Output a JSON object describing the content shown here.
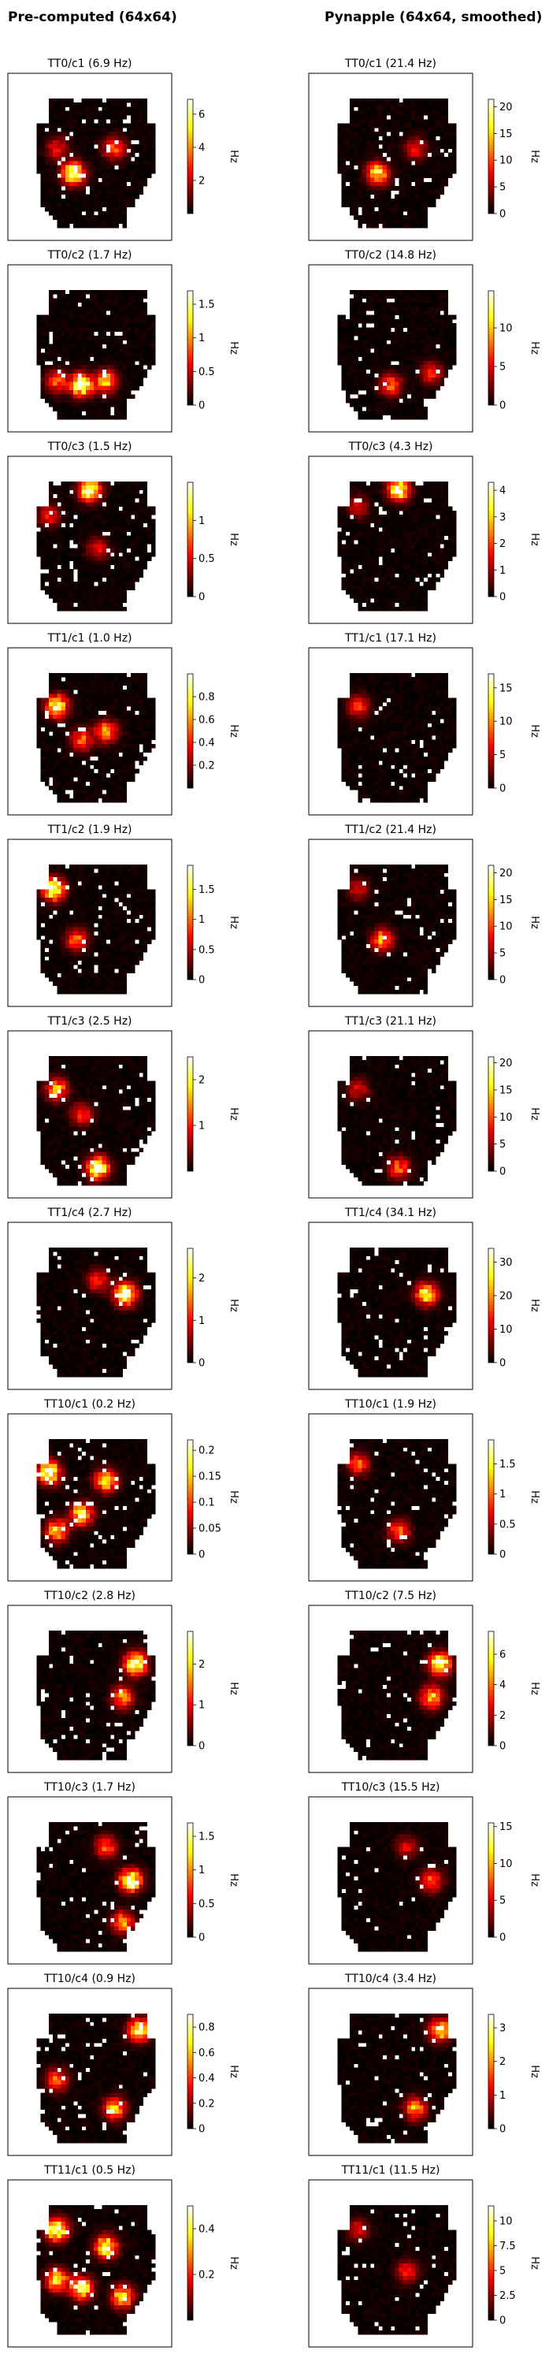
{
  "figure": {
    "column_titles": [
      "Pre-computed (64x64)",
      "Pynapple (64x64, smoothed)"
    ],
    "colormap": "hot",
    "colorbar_label": "Hz"
  },
  "chart_data": [
    {
      "type": "heatmap",
      "title": "TT0/c1 (6.9 Hz)",
      "unit": "Hz",
      "vmax": 6.9,
      "colorbar_ticks": [
        2,
        4,
        6
      ],
      "hotspots": [
        [
          0.4,
          0.6,
          1.0
        ],
        [
          0.65,
          0.45,
          0.5
        ],
        [
          0.3,
          0.45,
          0.35
        ]
      ],
      "seed": 11
    },
    {
      "type": "heatmap",
      "title": "TT0/c1 (21.4 Hz)",
      "unit": "Hz",
      "vmax": 21.4,
      "colorbar_ticks": [
        0,
        5,
        10,
        15,
        20
      ],
      "hotspots": [
        [
          0.42,
          0.6,
          0.8
        ],
        [
          0.65,
          0.45,
          0.35
        ]
      ],
      "seed": 12
    },
    {
      "type": "heatmap",
      "title": "TT0/c2 (1.7 Hz)",
      "unit": "Hz",
      "vmax": 1.7,
      "colorbar_ticks": [
        0.0,
        0.5,
        1.0,
        1.5
      ],
      "hotspots": [
        [
          0.45,
          0.72,
          1.0
        ],
        [
          0.6,
          0.7,
          0.7
        ],
        [
          0.3,
          0.7,
          0.5
        ]
      ],
      "seed": 13
    },
    {
      "type": "heatmap",
      "title": "TT0/c2 (14.8 Hz)",
      "unit": "Hz",
      "vmax": 14.8,
      "colorbar_ticks": [
        0,
        5,
        10
      ],
      "hotspots": [
        [
          0.5,
          0.72,
          0.5
        ],
        [
          0.75,
          0.65,
          0.4
        ]
      ],
      "seed": 14
    },
    {
      "type": "heatmap",
      "title": "TT0/c3 (1.5 Hz)",
      "unit": "Hz",
      "vmax": 1.5,
      "colorbar_ticks": [
        0.0,
        0.5,
        1.0
      ],
      "hotspots": [
        [
          0.5,
          0.2,
          1.0
        ],
        [
          0.25,
          0.35,
          0.4
        ],
        [
          0.55,
          0.55,
          0.3
        ]
      ],
      "seed": 15
    },
    {
      "type": "heatmap",
      "title": "TT0/c3 (4.3 Hz)",
      "unit": "Hz",
      "vmax": 4.3,
      "colorbar_ticks": [
        0,
        1,
        2,
        3,
        4
      ],
      "hotspots": [
        [
          0.55,
          0.2,
          0.9
        ],
        [
          0.3,
          0.3,
          0.3
        ]
      ],
      "seed": 16
    },
    {
      "type": "heatmap",
      "title": "TT1/c1 (1.0 Hz)",
      "unit": "Hz",
      "vmax": 1.0,
      "colorbar_ticks": [
        0.2,
        0.4,
        0.6,
        0.8
      ],
      "hotspots": [
        [
          0.3,
          0.35,
          0.9
        ],
        [
          0.6,
          0.5,
          0.6
        ],
        [
          0.45,
          0.55,
          0.5
        ]
      ],
      "seed": 17
    },
    {
      "type": "heatmap",
      "title": "TT1/c1 (17.1 Hz)",
      "unit": "Hz",
      "vmax": 17.1,
      "colorbar_ticks": [
        0,
        5,
        10,
        15
      ],
      "hotspots": [
        [
          0.3,
          0.35,
          0.4
        ]
      ],
      "seed": 18
    },
    {
      "type": "heatmap",
      "title": "TT1/c2 (1.9 Hz)",
      "unit": "Hz",
      "vmax": 1.9,
      "colorbar_ticks": [
        0.0,
        0.5,
        1.0,
        1.5
      ],
      "hotspots": [
        [
          0.28,
          0.3,
          1.0
        ],
        [
          0.42,
          0.6,
          0.5
        ]
      ],
      "seed": 19
    },
    {
      "type": "heatmap",
      "title": "TT1/c2 (21.4 Hz)",
      "unit": "Hz",
      "vmax": 21.4,
      "colorbar_ticks": [
        0,
        5,
        10,
        15,
        20
      ],
      "hotspots": [
        [
          0.45,
          0.6,
          0.6
        ],
        [
          0.3,
          0.3,
          0.3
        ]
      ],
      "seed": 20
    },
    {
      "type": "heatmap",
      "title": "TT1/c3 (2.5 Hz)",
      "unit": "Hz",
      "vmax": 2.5,
      "colorbar_ticks": [
        1,
        2
      ],
      "hotspots": [
        [
          0.3,
          0.35,
          0.6
        ],
        [
          0.55,
          0.82,
          1.0
        ],
        [
          0.45,
          0.5,
          0.4
        ]
      ],
      "seed": 21
    },
    {
      "type": "heatmap",
      "title": "TT1/c3 (21.1 Hz)",
      "unit": "Hz",
      "vmax": 21.1,
      "colorbar_ticks": [
        0,
        5,
        10,
        15,
        20
      ],
      "hotspots": [
        [
          0.55,
          0.82,
          0.5
        ],
        [
          0.3,
          0.35,
          0.3
        ]
      ],
      "seed": 22
    },
    {
      "type": "heatmap",
      "title": "TT1/c4 (2.7 Hz)",
      "unit": "Hz",
      "vmax": 2.7,
      "colorbar_ticks": [
        0,
        1,
        2
      ],
      "hotspots": [
        [
          0.72,
          0.43,
          1.0
        ],
        [
          0.55,
          0.35,
          0.4
        ]
      ],
      "seed": 23
    },
    {
      "type": "heatmap",
      "title": "TT1/c4 (34.1 Hz)",
      "unit": "Hz",
      "vmax": 34.1,
      "colorbar_ticks": [
        0,
        10,
        20,
        30
      ],
      "hotspots": [
        [
          0.72,
          0.43,
          0.8
        ]
      ],
      "seed": 24
    },
    {
      "type": "heatmap",
      "title": "TT10/c1 (0.2 Hz)",
      "unit": "Hz",
      "vmax": 0.22,
      "colorbar_ticks": [
        0.0,
        0.05,
        0.1,
        0.15,
        0.2
      ],
      "hotspots": [
        [
          0.25,
          0.35,
          1.0
        ],
        [
          0.6,
          0.4,
          0.8
        ],
        [
          0.45,
          0.6,
          0.8
        ],
        [
          0.3,
          0.7,
          0.7
        ]
      ],
      "seed": 25
    },
    {
      "type": "heatmap",
      "title": "TT10/c1 (1.9 Hz)",
      "unit": "Hz",
      "vmax": 1.9,
      "colorbar_ticks": [
        0.0,
        0.5,
        1.0,
        1.5
      ],
      "hotspots": [
        [
          0.3,
          0.3,
          0.5
        ],
        [
          0.55,
          0.7,
          0.5
        ]
      ],
      "seed": 26
    },
    {
      "type": "heatmap",
      "title": "TT10/c2 (2.8 Hz)",
      "unit": "Hz",
      "vmax": 2.8,
      "colorbar_ticks": [
        0,
        1,
        2
      ],
      "hotspots": [
        [
          0.78,
          0.35,
          1.0
        ],
        [
          0.7,
          0.55,
          0.6
        ]
      ],
      "seed": 27
    },
    {
      "type": "heatmap",
      "title": "TT10/c2 (7.5 Hz)",
      "unit": "Hz",
      "vmax": 7.5,
      "colorbar_ticks": [
        0,
        2,
        4,
        6
      ],
      "hotspots": [
        [
          0.8,
          0.35,
          1.0
        ],
        [
          0.75,
          0.55,
          0.7
        ]
      ],
      "seed": 28
    },
    {
      "type": "heatmap",
      "title": "TT10/c3 (1.7 Hz)",
      "unit": "Hz",
      "vmax": 1.7,
      "colorbar_ticks": [
        0.0,
        0.5,
        1.0,
        1.5
      ],
      "hotspots": [
        [
          0.75,
          0.5,
          1.0
        ],
        [
          0.6,
          0.3,
          0.5
        ],
        [
          0.7,
          0.75,
          0.6
        ]
      ],
      "seed": 29
    },
    {
      "type": "heatmap",
      "title": "TT10/c3 (15.5 Hz)",
      "unit": "Hz",
      "vmax": 15.5,
      "colorbar_ticks": [
        0,
        5,
        10,
        15
      ],
      "hotspots": [
        [
          0.75,
          0.5,
          0.5
        ],
        [
          0.6,
          0.3,
          0.3
        ]
      ],
      "seed": 30
    },
    {
      "type": "heatmap",
      "title": "TT10/c4 (0.9 Hz)",
      "unit": "Hz",
      "vmax": 0.9,
      "colorbar_ticks": [
        0.0,
        0.2,
        0.4,
        0.6,
        0.8
      ],
      "hotspots": [
        [
          0.8,
          0.25,
          0.9
        ],
        [
          0.65,
          0.72,
          0.7
        ],
        [
          0.3,
          0.55,
          0.5
        ]
      ],
      "seed": 31
    },
    {
      "type": "heatmap",
      "title": "TT10/c4 (3.4 Hz)",
      "unit": "Hz",
      "vmax": 3.4,
      "colorbar_ticks": [
        0,
        1,
        2,
        3
      ],
      "hotspots": [
        [
          0.8,
          0.25,
          0.8
        ],
        [
          0.65,
          0.72,
          0.6
        ]
      ],
      "seed": 32
    },
    {
      "type": "heatmap",
      "title": "TT11/c1 (0.5 Hz)",
      "unit": "Hz",
      "vmax": 0.5,
      "colorbar_ticks": [
        0.2,
        0.4
      ],
      "hotspots": [
        [
          0.3,
          0.3,
          1.0
        ],
        [
          0.6,
          0.4,
          0.9
        ],
        [
          0.45,
          0.65,
          0.9
        ],
        [
          0.7,
          0.7,
          0.8
        ],
        [
          0.3,
          0.6,
          0.8
        ]
      ],
      "seed": 33
    },
    {
      "type": "heatmap",
      "title": "TT11/c1 (11.5 Hz)",
      "unit": "Hz",
      "vmax": 11.5,
      "colorbar_ticks": [
        0.0,
        2.5,
        5.0,
        7.5,
        10.0
      ],
      "hotspots": [
        [
          0.6,
          0.55,
          0.4
        ],
        [
          0.3,
          0.3,
          0.3
        ]
      ],
      "seed": 34
    }
  ]
}
